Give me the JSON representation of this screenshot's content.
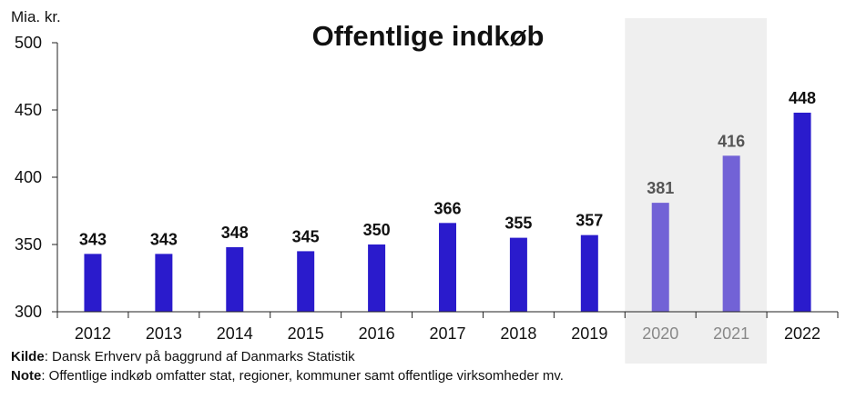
{
  "chart_data": {
    "type": "bar",
    "title": "Offentlige indkøb",
    "ylabel": "Mia. kr.",
    "ylim": [
      300,
      500
    ],
    "yticks": [
      "300",
      "350",
      "400",
      "450",
      "500"
    ],
    "categories": [
      "2012",
      "2013",
      "2014",
      "2015",
      "2016",
      "2017",
      "2018",
      "2019",
      "2020",
      "2021",
      "2022"
    ],
    "values": [
      343,
      343,
      348,
      345,
      350,
      366,
      355,
      357,
      381,
      416,
      448
    ],
    "data_labels": [
      "343",
      "343",
      "348",
      "345",
      "350",
      "366",
      "355",
      "357",
      "381",
      "416",
      "448"
    ],
    "highlighted_categories": [
      "2020",
      "2021"
    ],
    "grid": false,
    "legend": "none",
    "colors": {
      "bar": "#2a1bcc",
      "bar_highlight": "#7262d6",
      "highlight_band": "#efefef",
      "label": "#111111",
      "label_highlight": "#555555",
      "tick_highlight": "#888888"
    }
  },
  "footnotes": {
    "source_label": "Kilde",
    "source_text": ": Dansk Erhverv på baggrund af Danmarks Statistik",
    "note_label": "Note",
    "note_text": ": Offentlige indkøb omfatter stat, regioner, kommuner samt offentlige virksomheder mv."
  }
}
